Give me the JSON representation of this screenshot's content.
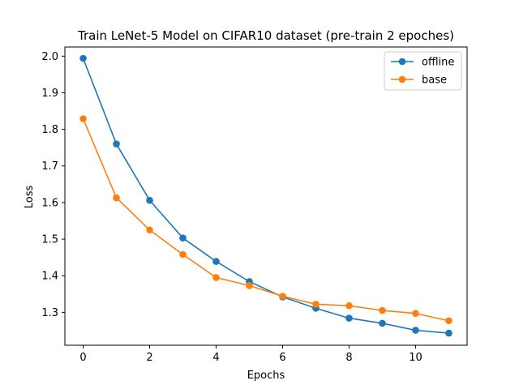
{
  "chart_data": {
    "type": "line",
    "title": "Train LeNet-5 Model on CIFAR10 dataset (pre-train 2 epoches)",
    "xlabel": "Epochs",
    "ylabel": "Loss",
    "xlim": [
      -0.55,
      11.55
    ],
    "ylim": [
      1.21,
      2.025
    ],
    "x_ticks": [
      0,
      2,
      4,
      6,
      8,
      10
    ],
    "y_ticks": [
      1.3,
      1.4,
      1.5,
      1.6,
      1.7,
      1.8,
      1.9,
      2.0
    ],
    "x_tick_labels": [
      "0",
      "2",
      "4",
      "6",
      "8",
      "10"
    ],
    "y_tick_labels": [
      "1.3",
      "1.4",
      "1.5",
      "1.6",
      "1.7",
      "1.8",
      "1.9",
      "2.0"
    ],
    "grid": false,
    "legend_position": "top-right",
    "x": [
      0,
      1,
      2,
      3,
      4,
      5,
      6,
      7,
      8,
      9,
      10,
      11
    ],
    "series": [
      {
        "name": "offline",
        "color": "#1f77b4",
        "values": [
          1.994,
          1.76,
          1.606,
          1.503,
          1.439,
          1.384,
          1.342,
          1.311,
          1.284,
          1.27,
          1.251,
          1.243
        ]
      },
      {
        "name": "base",
        "color": "#ff7f0e",
        "values": [
          1.829,
          1.613,
          1.525,
          1.458,
          1.395,
          1.373,
          1.344,
          1.322,
          1.318,
          1.305,
          1.297,
          1.277
        ]
      }
    ]
  }
}
